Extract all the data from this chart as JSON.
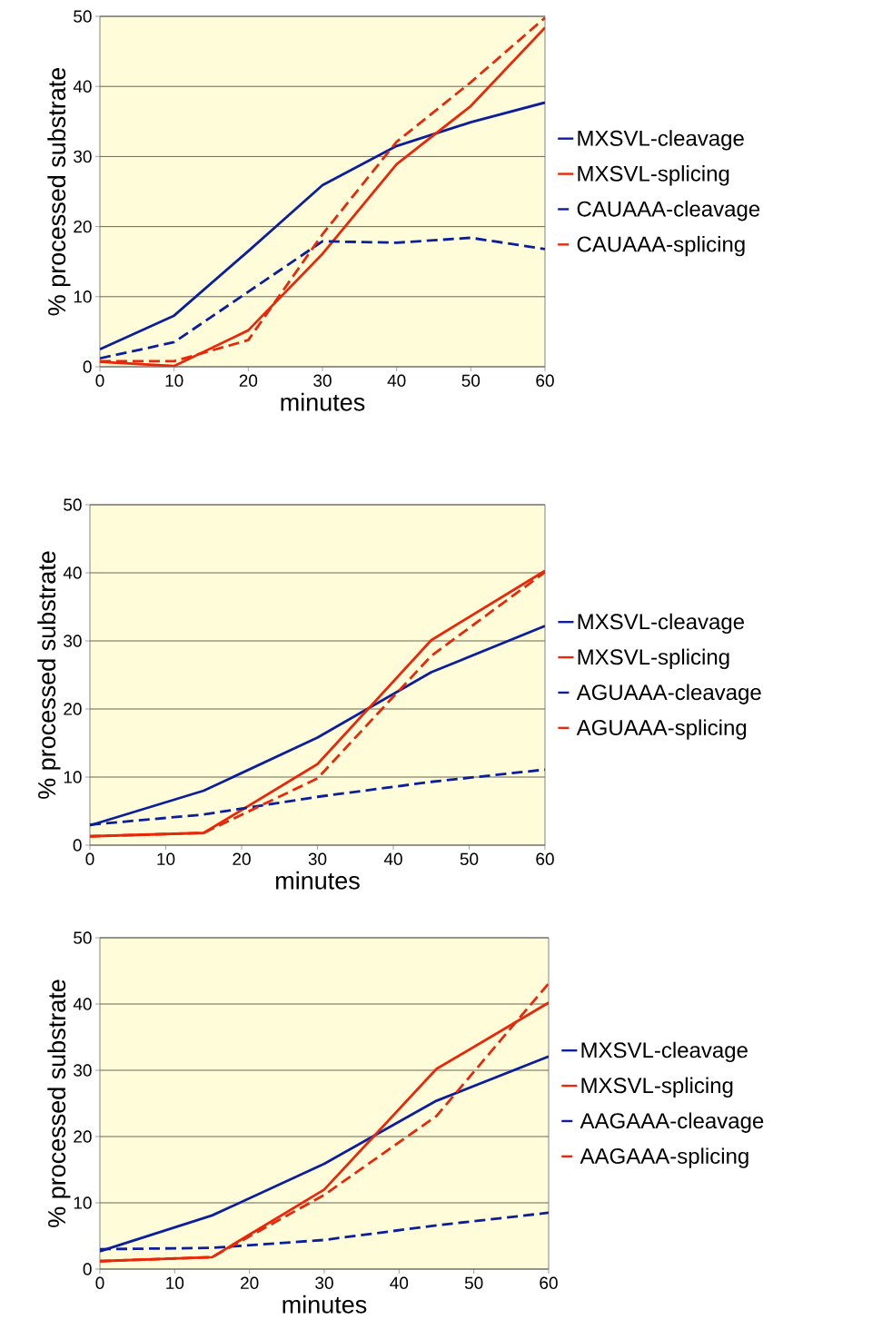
{
  "chart_data": [
    {
      "type": "line",
      "xlabel": "minutes",
      "ylabel": "% processed substrate",
      "x": [
        0,
        10,
        20,
        30,
        40,
        50,
        60
      ],
      "xlim": [
        0,
        60
      ],
      "ylim": [
        0,
        50
      ],
      "xticks": [
        0,
        10,
        20,
        30,
        40,
        50,
        60
      ],
      "yticks": [
        0,
        10,
        20,
        30,
        40,
        50
      ],
      "grid": "y",
      "legend": "right",
      "marker": "none",
      "series": [
        {
          "name": "MXSVL-cleavage",
          "color": "#0a1e9e",
          "line_style": "solid",
          "values": [
            2.5,
            7.3,
            16.5,
            25.9,
            31.5,
            34.9,
            37.7
          ]
        },
        {
          "name": "MXSVL-splicing",
          "color": "#e8280a",
          "line_style": "solid",
          "values": [
            0.7,
            0.1,
            5.2,
            16.1,
            28.9,
            37.2,
            48.4
          ]
        },
        {
          "name": "CAUAAA-cleavage",
          "color": "#0a1e9e",
          "line_style": "dashed",
          "values": [
            1.2,
            3.5,
            10.7,
            17.9,
            17.7,
            18.4,
            16.8
          ]
        },
        {
          "name": "CAUAAA-splicing",
          "color": "#e8280a",
          "line_style": "dashed",
          "values": [
            0.8,
            0.8,
            3.8,
            18.9,
            32.1,
            40.6,
            49.8
          ]
        }
      ]
    },
    {
      "type": "line",
      "xlabel": "minutes",
      "ylabel": "% processed substrate",
      "x": [
        0,
        15,
        30,
        45,
        60
      ],
      "xlim": [
        0,
        60
      ],
      "ylim": [
        0,
        50
      ],
      "xticks": [
        0,
        10,
        20,
        30,
        40,
        50,
        60
      ],
      "yticks": [
        0,
        10,
        20,
        30,
        40,
        50
      ],
      "grid": "y",
      "legend": "right",
      "marker": "none",
      "series": [
        {
          "name": "MXSVL-cleavage",
          "color": "#0a1e9e",
          "line_style": "solid",
          "values": [
            2.9,
            8.0,
            15.8,
            25.4,
            32.2
          ]
        },
        {
          "name": "MXSVL-splicing",
          "color": "#e8280a",
          "line_style": "solid",
          "values": [
            1.3,
            1.8,
            11.9,
            30.1,
            40.3
          ]
        },
        {
          "name": "AGUAAA-cleavage",
          "color": "#0a1e9e",
          "line_style": "dashed",
          "values": [
            3.0,
            4.5,
            7.1,
            9.3,
            11.1
          ]
        },
        {
          "name": "AGUAAA-splicing",
          "color": "#e8280a",
          "line_style": "dashed",
          "values": [
            1.3,
            1.8,
            9.8,
            27.8,
            40.1
          ]
        }
      ]
    },
    {
      "type": "line",
      "xlabel": "minutes",
      "ylabel": "% processed substrate",
      "x": [
        0,
        15,
        30,
        45,
        60
      ],
      "xlim": [
        0,
        60
      ],
      "ylim": [
        0,
        50
      ],
      "xticks": [
        0,
        10,
        20,
        30,
        40,
        50,
        60
      ],
      "yticks": [
        0,
        10,
        20,
        30,
        40,
        50
      ],
      "grid": "y",
      "legend": "right",
      "marker": "none",
      "series": [
        {
          "name": "MXSVL-cleavage",
          "color": "#0a1e9e",
          "line_style": "solid",
          "values": [
            2.7,
            8.1,
            15.9,
            25.4,
            32.1
          ]
        },
        {
          "name": "MXSVL-splicing",
          "color": "#e8280a",
          "line_style": "solid",
          "values": [
            1.2,
            1.8,
            12.0,
            30.2,
            40.2
          ]
        },
        {
          "name": "AAGAAA-cleavage",
          "color": "#0a1e9e",
          "line_style": "dashed",
          "values": [
            3.0,
            3.2,
            4.4,
            6.6,
            8.5
          ]
        },
        {
          "name": "AAGAAA-splicing",
          "color": "#e8280a",
          "line_style": "dashed",
          "values": [
            1.2,
            1.8,
            11.2,
            23.1,
            43.1
          ]
        }
      ]
    }
  ]
}
